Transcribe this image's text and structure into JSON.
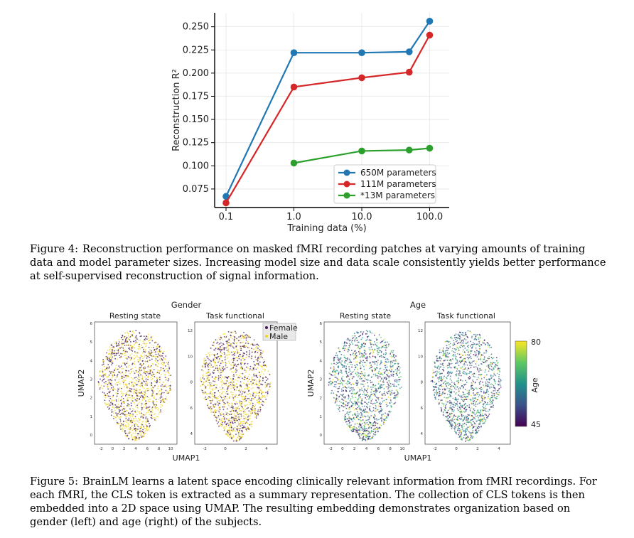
{
  "figure4": {
    "caption_label": "Figure 4:",
    "caption_text": "Reconstruction performance on masked fMRI recording patches at varying amounts of training data and model parameter sizes. Increasing model size and data scale consistently yields better performance at self-supervised reconstruction of signal information."
  },
  "figure5": {
    "caption_label": "Figure 5:",
    "caption_text": "BrainLM learns a latent space encoding clinically relevant information from fMRI recordings. For each fMRI, the CLS token is extracted as a summary representation. The collection of CLS tokens is then embedded into a 2D space using UMAP. The resulting embedding demonstrates organization based on gender (left) and age (right) of the subjects.",
    "gender_title": "Gender",
    "age_title": "Age",
    "panel_resting": "Resting state",
    "panel_task": "Task functional",
    "xlabel": "UMAP1",
    "ylabel": "UMAP2",
    "legend_female": "Female",
    "legend_male": "Male",
    "colorbar_label": "Age",
    "colorbar_max": "80",
    "colorbar_min": "45",
    "rest_x_ticks": [
      "-2",
      "0",
      "2",
      "4",
      "6",
      "8",
      "10"
    ],
    "rest_y_ticks": [
      "0",
      "1",
      "2",
      "3",
      "4",
      "5",
      "6"
    ],
    "task_x_ticks": [
      "-2",
      "0",
      "2",
      "4"
    ],
    "task_y_ticks": [
      "4",
      "6",
      "8",
      "10",
      "12"
    ],
    "colors": {
      "female": "#44175a",
      "male": "#f2d51c"
    }
  },
  "chart_data": {
    "type": "line",
    "xlabel": "Training data (%)",
    "ylabel": "Reconstruction R²",
    "x_scale": "log",
    "x": [
      0.1,
      1.0,
      10.0,
      50.0,
      100.0
    ],
    "x_tick_labels": [
      "0.1",
      "1.0",
      "10.0",
      "100.0"
    ],
    "y_tick_labels": [
      "0.075",
      "0.100",
      "0.125",
      "0.150",
      "0.175",
      "0.200",
      "0.225",
      "0.250"
    ],
    "ylim": [
      0.055,
      0.262
    ],
    "legend_position": "lower-right",
    "grid": true,
    "series": [
      {
        "name": "650M parameters",
        "color": "#1f77b4",
        "values": [
          0.067,
          0.222,
          0.222,
          0.223,
          0.256
        ]
      },
      {
        "name": "111M parameters",
        "color": "#d62728",
        "values": [
          0.06,
          0.185,
          0.195,
          0.201,
          0.241
        ]
      },
      {
        "name": "*13M parameters",
        "color": "#2ca02c",
        "values": [
          null,
          0.103,
          0.116,
          0.117,
          0.119
        ]
      }
    ]
  }
}
